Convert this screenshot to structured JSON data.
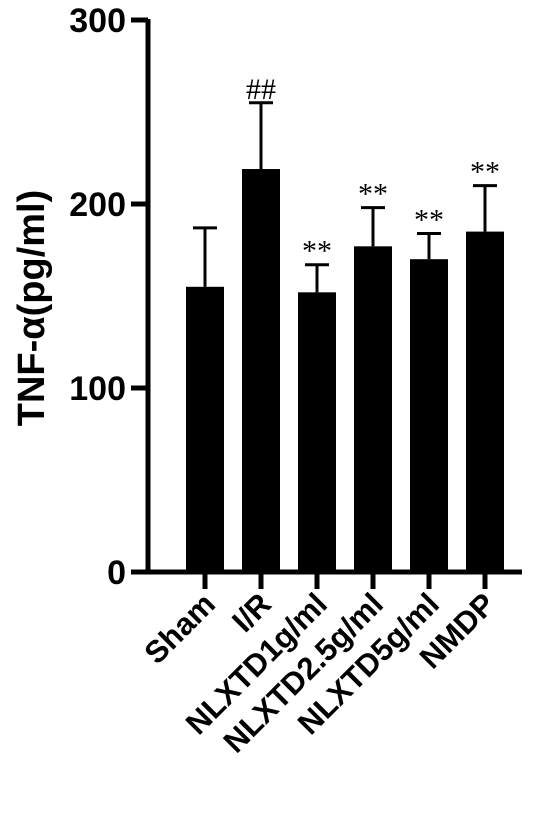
{
  "chart_data": {
    "type": "bar",
    "title": "",
    "xlabel": "",
    "ylabel": "TNF-α(pg/ml)",
    "ylim": [
      0,
      300
    ],
    "yticks": [
      "0",
      "100",
      "200",
      "300"
    ],
    "ytick_values": [
      0,
      100,
      200,
      300
    ],
    "categories": [
      "Sham",
      "I/R",
      "NLXTD1g/ml",
      "NLXTD2.5g/ml",
      "NLXTD5g/ml",
      "NMDP"
    ],
    "values": [
      155,
      219,
      152,
      177,
      170,
      185
    ],
    "errors": [
      32,
      36,
      15,
      21,
      14,
      25
    ],
    "annotations": [
      "",
      "##",
      "**",
      "**",
      "**",
      "**"
    ],
    "bar_color": "#000000",
    "grid": false,
    "legend": "none"
  }
}
